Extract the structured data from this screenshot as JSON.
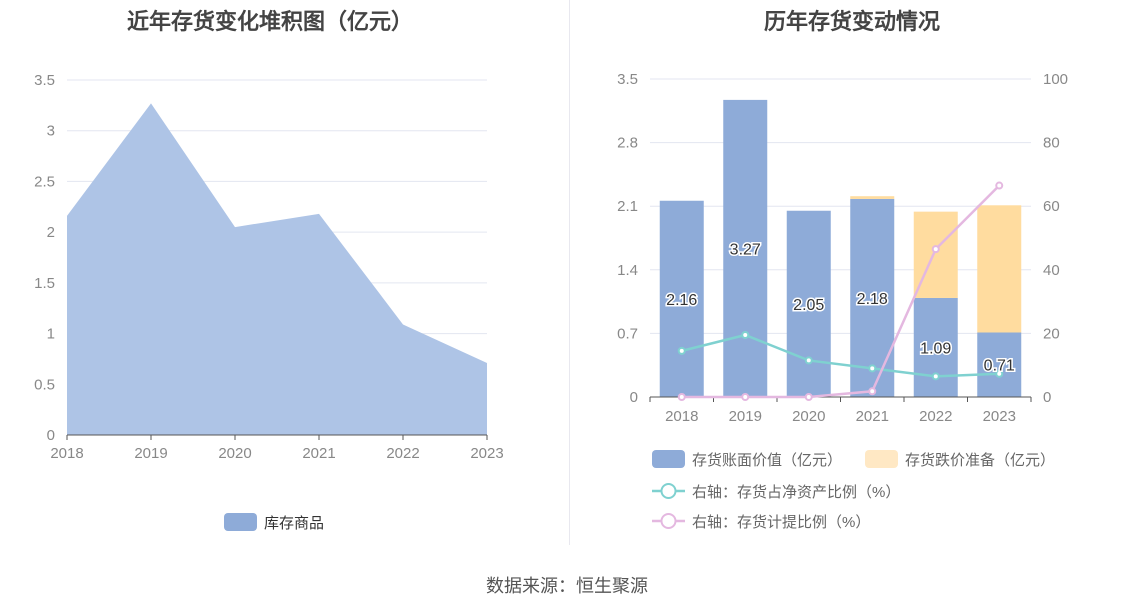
{
  "left": {
    "title": "近年存货变化堆积图（亿元）",
    "chart_data": {
      "type": "area",
      "title": "近年存货变化堆积图（亿元）",
      "categories": [
        "2018",
        "2019",
        "2020",
        "2021",
        "2022",
        "2023"
      ],
      "series": [
        {
          "name": "库存商品",
          "values": [
            2.16,
            3.27,
            2.05,
            2.18,
            1.09,
            0.71
          ]
        }
      ],
      "ylim": [
        0,
        3.5
      ],
      "yticks": [
        "0",
        "0.5",
        "1",
        "1.5",
        "2",
        "2.5",
        "3",
        "3.5"
      ],
      "grid": true,
      "legend": "bottom",
      "colors": {
        "area": "#aec4e6",
        "legend": "#8eabd8"
      }
    }
  },
  "right": {
    "title": "历年存货变动情况",
    "chart_data": {
      "type": "bar",
      "title": "历年存货变动情况",
      "categories": [
        "2018",
        "2019",
        "2020",
        "2021",
        "2022",
        "2023"
      ],
      "series": [
        {
          "name": "存货账面价值（亿元）",
          "values": [
            2.16,
            3.27,
            2.05,
            2.18,
            1.09,
            0.71
          ],
          "labels": [
            "2.16",
            "3.27",
            "2.05",
            "2.18",
            "1.09",
            "0.71"
          ],
          "color": "#8eabd8"
        },
        {
          "name": "存货跌价准备（亿元）",
          "values": [
            0,
            0,
            0,
            0.03,
            0.95,
            1.4
          ],
          "color": "#ffdc9f",
          "legend_color": "#ffe8c4"
        }
      ],
      "line_series": [
        {
          "name": "右轴：存货占净资产比例（%）",
          "values": [
            14.5,
            19.5,
            11.5,
            9,
            6.5,
            7.3
          ],
          "color": "#7fd1d0"
        },
        {
          "name": "右轴：存货计提比例（%）",
          "values": [
            0,
            0,
            0,
            1.8,
            46.5,
            66.5
          ],
          "color": "#e4b8e0"
        }
      ],
      "ylim": [
        0,
        3.5
      ],
      "yticks": [
        "0",
        "0.7",
        "1.4",
        "2.1",
        "2.8",
        "3.5"
      ],
      "y2lim": [
        0,
        100
      ],
      "y2ticks": [
        "0",
        "20",
        "40",
        "60",
        "80",
        "100"
      ],
      "grid": true,
      "legend": "bottom"
    }
  },
  "footer": {
    "source": "数据来源：恒生聚源"
  }
}
